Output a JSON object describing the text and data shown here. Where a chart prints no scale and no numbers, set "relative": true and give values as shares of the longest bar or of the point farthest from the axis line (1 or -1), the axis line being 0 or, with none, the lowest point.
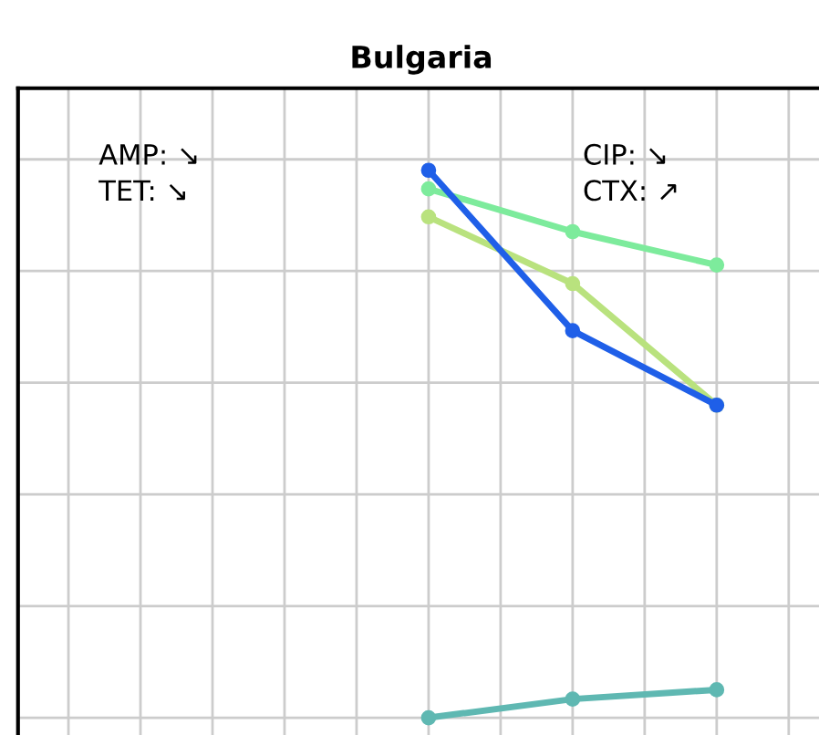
{
  "chart_data": {
    "type": "line",
    "title": "Bulgaria",
    "relative": true,
    "categories": [
      null,
      null,
      null
    ],
    "series": [
      {
        "color": "#5fb8b2",
        "values": [
          0,
          0.034,
          0.051
        ]
      },
      {
        "color": "#b9e27e",
        "values": [
          0.915,
          0.793,
          0.571
        ]
      },
      {
        "color": "#7deb9c",
        "values": [
          0.966,
          0.888,
          0.827
        ]
      },
      {
        "color": "#1f5fe8",
        "values": [
          1,
          0.707,
          0.571
        ]
      }
    ],
    "annotations": [
      "AMP: ↘",
      "TET: ↘",
      "CIP: ↘",
      "CTX: ↗"
    ],
    "marker": "circle",
    "line_style": "solid",
    "grid": true,
    "legend": false
  }
}
